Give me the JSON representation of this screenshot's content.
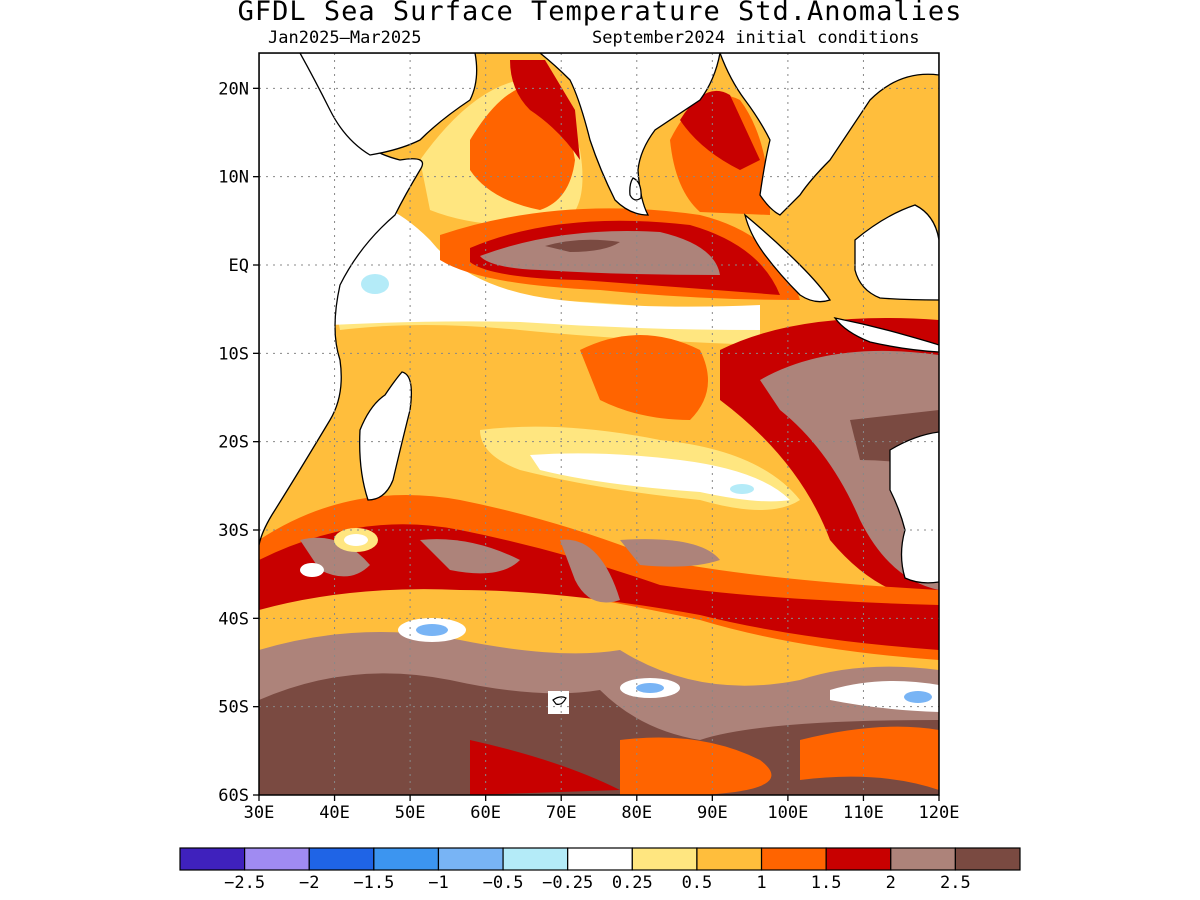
{
  "title": "GFDL Sea Surface Temperature Std.Anomalies",
  "period": "Jan2025–Mar2025",
  "initial_conditions": "September2024 initial conditions",
  "chart_data": {
    "type": "heatmap",
    "x_ticks": [
      "30E",
      "40E",
      "50E",
      "60E",
      "70E",
      "80E",
      "90E",
      "100E",
      "110E",
      "120E"
    ],
    "y_ticks": [
      "20N",
      "10N",
      "EQ",
      "10S",
      "20S",
      "30S",
      "40S",
      "50S",
      "60S"
    ],
    "xlim_deg_east": [
      30,
      120
    ],
    "ylim_deg_north": [
      -60,
      24
    ],
    "grid": "dotted",
    "colorbar": {
      "labels": [
        "−2.5",
        "−2",
        "−1.5",
        "−1",
        "−0.5",
        "−0.25",
        "0.25",
        "0.5",
        "1",
        "1.5",
        "2",
        "2.5"
      ],
      "colors": [
        "#3f21bd",
        "#a08bf2",
        "#1f64e6",
        "#3c95f0",
        "#78b4f5",
        "#b4ebf8",
        "#ffffff",
        "#ffe680",
        "#ffbe3c",
        "#ff6400",
        "#c80000",
        "#ad837a",
        "#7a4a41"
      ]
    }
  }
}
